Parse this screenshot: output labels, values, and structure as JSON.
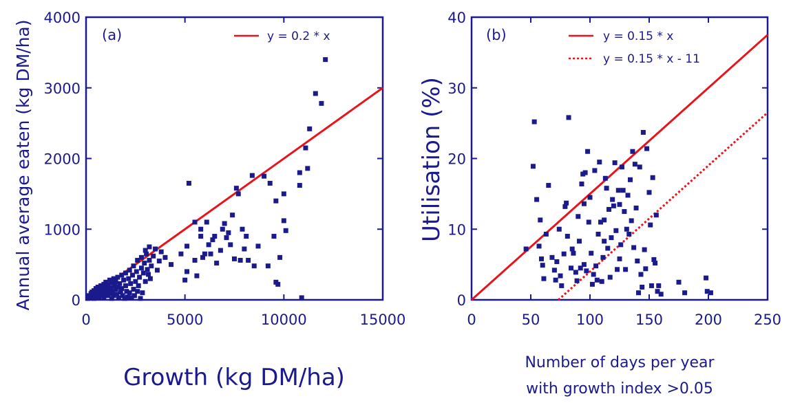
{
  "colors": {
    "axis": "#1a1a8c",
    "marker": "#1a1a8c",
    "fit_line": "#e8141b"
  },
  "chart_data": [
    {
      "type": "scatter",
      "panel_label": "(a)",
      "xlabel": "Growth (kg DM/ha)",
      "ylabel": "Annual average eaten (kg DM/ha)",
      "xlim": [
        0,
        15000
      ],
      "ylim": [
        0,
        4000
      ],
      "xticks": [
        0,
        5000,
        10000,
        15000
      ],
      "yticks": [
        0,
        1000,
        2000,
        3000,
        4000
      ],
      "xtick_labels": [
        "0",
        "5000",
        "10000",
        "15000"
      ],
      "ytick_labels": [
        "0",
        "1000",
        "2000",
        "3000",
        "4000"
      ],
      "grid": false,
      "legend_position": "top-right",
      "lines": [
        {
          "label": "y = 0.2 * x",
          "style": "solid",
          "slope": 0.2,
          "intercept": 0
        }
      ],
      "points": [
        [
          100,
          20
        ],
        [
          150,
          60
        ],
        [
          200,
          40
        ],
        [
          250,
          90
        ],
        [
          300,
          30
        ],
        [
          300,
          110
        ],
        [
          350,
          70
        ],
        [
          400,
          130
        ],
        [
          400,
          20
        ],
        [
          450,
          100
        ],
        [
          500,
          160
        ],
        [
          500,
          50
        ],
        [
          550,
          80
        ],
        [
          600,
          120
        ],
        [
          600,
          180
        ],
        [
          650,
          30
        ],
        [
          700,
          140
        ],
        [
          700,
          90
        ],
        [
          750,
          200
        ],
        [
          800,
          60
        ],
        [
          800,
          160
        ],
        [
          850,
          110
        ],
        [
          900,
          220
        ],
        [
          900,
          40
        ],
        [
          950,
          150
        ],
        [
          1000,
          250
        ],
        [
          1000,
          100
        ],
        [
          1050,
          180
        ],
        [
          1100,
          60
        ],
        [
          1100,
          210
        ],
        [
          1150,
          130
        ],
        [
          1200,
          280
        ],
        [
          1200,
          90
        ],
        [
          1250,
          170
        ],
        [
          1300,
          240
        ],
        [
          1300,
          20
        ],
        [
          1350,
          120
        ],
        [
          1400,
          300
        ],
        [
          1400,
          60
        ],
        [
          1450,
          200
        ],
        [
          1500,
          150
        ],
        [
          1500,
          260
        ],
        [
          1550,
          80
        ],
        [
          1600,
          320
        ],
        [
          1600,
          180
        ],
        [
          1650,
          30
        ],
        [
          1700,
          230
        ],
        [
          1750,
          110
        ],
        [
          1800,
          350
        ],
        [
          1800,
          160
        ],
        [
          1850,
          60
        ],
        [
          1900,
          280
        ],
        [
          1950,
          20
        ],
        [
          2000,
          200
        ],
        [
          2000,
          380
        ],
        [
          2050,
          120
        ],
        [
          2100,
          40
        ],
        [
          2150,
          300
        ],
        [
          2200,
          420
        ],
        [
          2200,
          100
        ],
        [
          2250,
          230
        ],
        [
          2300,
          30
        ],
        [
          2350,
          350
        ],
        [
          2400,
          150
        ],
        [
          2400,
          480
        ],
        [
          2450,
          60
        ],
        [
          2500,
          260
        ],
        [
          2550,
          400
        ],
        [
          2600,
          120
        ],
        [
          2600,
          560
        ],
        [
          2650,
          200
        ],
        [
          2700,
          320
        ],
        [
          2750,
          20
        ],
        [
          2800,
          450
        ],
        [
          2800,
          600
        ],
        [
          2850,
          100
        ],
        [
          2900,
          380
        ],
        [
          2950,
          520
        ],
        [
          3000,
          260
        ],
        [
          3000,
          700
        ],
        [
          3050,
          650
        ],
        [
          3100,
          430
        ],
        [
          3150,
          360
        ],
        [
          3200,
          560
        ],
        [
          3200,
          750
        ],
        [
          3250,
          300
        ],
        [
          3300,
          480
        ],
        [
          3400,
          620
        ],
        [
          3500,
          720
        ],
        [
          3600,
          420
        ],
        [
          3700,
          550
        ],
        [
          3800,
          680
        ],
        [
          4000,
          600
        ],
        [
          4300,
          500
        ],
        [
          4800,
          650
        ],
        [
          5100,
          760
        ],
        [
          5100,
          400
        ],
        [
          5200,
          1650
        ],
        [
          5500,
          1100
        ],
        [
          5500,
          560
        ],
        [
          5600,
          340
        ],
        [
          5800,
          900
        ],
        [
          5900,
          600
        ],
        [
          6100,
          1100
        ],
        [
          6200,
          780
        ],
        [
          6300,
          650
        ],
        [
          6400,
          850
        ],
        [
          6600,
          520
        ],
        [
          6800,
          700
        ],
        [
          7000,
          1080
        ],
        [
          7100,
          880
        ],
        [
          7300,
          780
        ],
        [
          7400,
          1200
        ],
        [
          7500,
          580
        ],
        [
          7600,
          1580
        ],
        [
          7700,
          1500
        ],
        [
          7800,
          560
        ],
        [
          7900,
          1000
        ],
        [
          8000,
          720
        ],
        [
          8100,
          900
        ],
        [
          8200,
          560
        ],
        [
          8400,
          1760
        ],
        [
          8500,
          480
        ],
        [
          8700,
          760
        ],
        [
          9000,
          1750
        ],
        [
          9200,
          480
        ],
        [
          9300,
          1650
        ],
        [
          9500,
          900
        ],
        [
          9600,
          1400
        ],
        [
          9600,
          250
        ],
        [
          9700,
          220
        ],
        [
          9800,
          600
        ],
        [
          10000,
          1120
        ],
        [
          10000,
          1500
        ],
        [
          10100,
          980
        ],
        [
          10800,
          1800
        ],
        [
          10800,
          1620
        ],
        [
          10900,
          30
        ],
        [
          11100,
          2150
        ],
        [
          11200,
          1860
        ],
        [
          11300,
          2420
        ],
        [
          11600,
          2920
        ],
        [
          11900,
          2780
        ],
        [
          12100,
          3400
        ],
        [
          6500,
          900
        ],
        [
          6900,
          1000
        ],
        [
          7200,
          950
        ],
        [
          5800,
          1000
        ],
        [
          6000,
          650
        ],
        [
          5000,
          280
        ]
      ]
    },
    {
      "type": "scatter",
      "panel_label": "(b)",
      "xlabel_lines": [
        "Number of days per year",
        "with growth index >0.05"
      ],
      "ylabel": "Utilisation (%)",
      "xlim": [
        0,
        250
      ],
      "ylim": [
        0,
        40
      ],
      "xticks": [
        0,
        50,
        100,
        150,
        200,
        250
      ],
      "yticks": [
        0,
        10,
        20,
        30,
        40
      ],
      "xtick_labels": [
        "0",
        "50",
        "100",
        "150",
        "200",
        "250"
      ],
      "ytick_labels": [
        "0",
        "10",
        "20",
        "30",
        "40"
      ],
      "grid": false,
      "legend_position": "top-right",
      "lines": [
        {
          "label": "y = 0.15 * x",
          "style": "solid",
          "slope": 0.15,
          "intercept": 0
        },
        {
          "label": "y = 0.15 * x - 11",
          "style": "dotted",
          "slope": 0.15,
          "intercept": -11
        }
      ],
      "points": [
        [
          46,
          7.2
        ],
        [
          52,
          18.9
        ],
        [
          53,
          25.2
        ],
        [
          55,
          14.2
        ],
        [
          57,
          7.6
        ],
        [
          58,
          11.3
        ],
        [
          59,
          5.8
        ],
        [
          60,
          4.9
        ],
        [
          61,
          3.0
        ],
        [
          63,
          9.3
        ],
        [
          65,
          16.2
        ],
        [
          68,
          6.0
        ],
        [
          70,
          4.2
        ],
        [
          71,
          2.8
        ],
        [
          72,
          5.4
        ],
        [
          74,
          10.0
        ],
        [
          75,
          3.4
        ],
        [
          76,
          2.0
        ],
        [
          78,
          6.5
        ],
        [
          79,
          13.2
        ],
        [
          80,
          13.7
        ],
        [
          81,
          9.0
        ],
        [
          82,
          25.8
        ],
        [
          84,
          4.5
        ],
        [
          85,
          7.2
        ],
        [
          86,
          6.6
        ],
        [
          88,
          3.9
        ],
        [
          89,
          2.7
        ],
        [
          90,
          11.8
        ],
        [
          91,
          8.3
        ],
        [
          92,
          4.5
        ],
        [
          93,
          16.4
        ],
        [
          94,
          17.8
        ],
        [
          95,
          13.6
        ],
        [
          96,
          18.0
        ],
        [
          97,
          4.1
        ],
        [
          98,
          21.0
        ],
        [
          99,
          11.0
        ],
        [
          100,
          14.5
        ],
        [
          101,
          6.6
        ],
        [
          102,
          2.2
        ],
        [
          103,
          3.6
        ],
        [
          104,
          18.3
        ],
        [
          105,
          4.8
        ],
        [
          106,
          2.8
        ],
        [
          107,
          9.3
        ],
        [
          108,
          19.5
        ],
        [
          109,
          11.0
        ],
        [
          110,
          2.6
        ],
        [
          111,
          6.0
        ],
        [
          112,
          11.3
        ],
        [
          113,
          17.2
        ],
        [
          114,
          15.8
        ],
        [
          115,
          7.3
        ],
        [
          116,
          12.8
        ],
        [
          117,
          3.2
        ],
        [
          118,
          8.8
        ],
        [
          119,
          14.2
        ],
        [
          120,
          13.3
        ],
        [
          121,
          19.4
        ],
        [
          122,
          9.8
        ],
        [
          123,
          4.3
        ],
        [
          124,
          15.5
        ],
        [
          125,
          13.5
        ],
        [
          126,
          7.8
        ],
        [
          127,
          18.8
        ],
        [
          128,
          15.5
        ],
        [
          129,
          12.5
        ],
        [
          130,
          4.3
        ],
        [
          131,
          10.0
        ],
        [
          132,
          14.8
        ],
        [
          133,
          9.3
        ],
        [
          134,
          17.0
        ],
        [
          135,
          11.2
        ],
        [
          136,
          21.0
        ],
        [
          137,
          7.4
        ],
        [
          138,
          19.2
        ],
        [
          139,
          13.0
        ],
        [
          140,
          5.5
        ],
        [
          141,
          1.0
        ],
        [
          142,
          18.8
        ],
        [
          143,
          3.6
        ],
        [
          144,
          1.8
        ],
        [
          145,
          23.7
        ],
        [
          146,
          7.1
        ],
        [
          147,
          4.4
        ],
        [
          148,
          21.4
        ],
        [
          150,
          15.2
        ],
        [
          151,
          10.6
        ],
        [
          152,
          2.0
        ],
        [
          153,
          17.3
        ],
        [
          154,
          5.7
        ],
        [
          155,
          5.2
        ],
        [
          156,
          12.0
        ],
        [
          157,
          1.2
        ],
        [
          158,
          2.0
        ],
        [
          160,
          0.8
        ],
        [
          175,
          2.5
        ],
        [
          180,
          1.0
        ],
        [
          198,
          3.1
        ],
        [
          199,
          1.2
        ],
        [
          202,
          1.0
        ],
        [
          112,
          8.3
        ],
        [
          125,
          5.8
        ],
        [
          95,
          5.0
        ]
      ]
    }
  ]
}
